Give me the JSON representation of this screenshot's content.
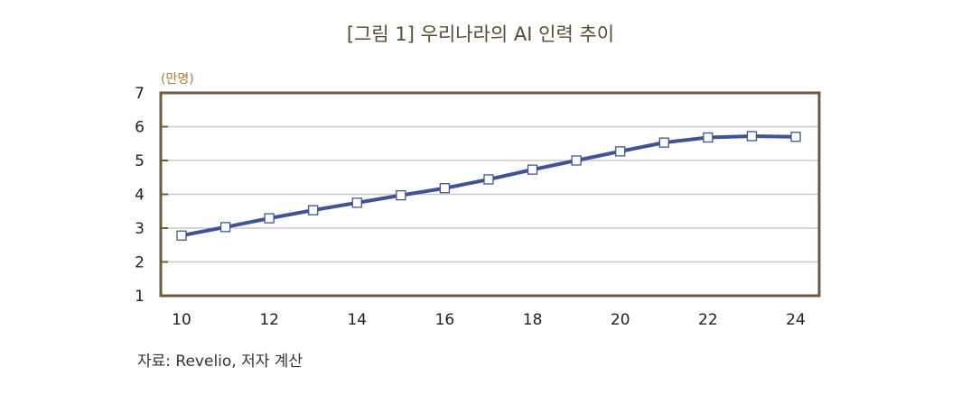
{
  "chart_data": {
    "type": "line",
    "title": "[그림 1] 우리나라의 AI 인력 추이",
    "ylabel": "(만명)",
    "xlabel": "",
    "x": [
      10,
      11,
      12,
      13,
      14,
      15,
      16,
      17,
      18,
      19,
      20,
      21,
      22,
      23,
      24
    ],
    "series": [
      {
        "values": [
          2.78,
          3.03,
          3.29,
          3.53,
          3.75,
          3.97,
          4.18,
          4.44,
          4.73,
          5.0,
          5.27,
          5.53,
          5.68,
          5.72,
          5.7
        ]
      }
    ],
    "xticks": [
      "10",
      "12",
      "14",
      "16",
      "18",
      "20",
      "22",
      "24"
    ],
    "yticks": [
      "1",
      "2",
      "3",
      "4",
      "5",
      "6",
      "7"
    ],
    "xlim": [
      10,
      24
    ],
    "ylim": [
      1,
      7
    ],
    "grid": "horizontal",
    "legend": "none",
    "colors": {
      "line": "#3f5496",
      "frame": "#6b5a3e",
      "grid": "#c8c8c8",
      "ylabel": "#b07a3a"
    },
    "source": "자료: Revelio, 저자 계산"
  }
}
